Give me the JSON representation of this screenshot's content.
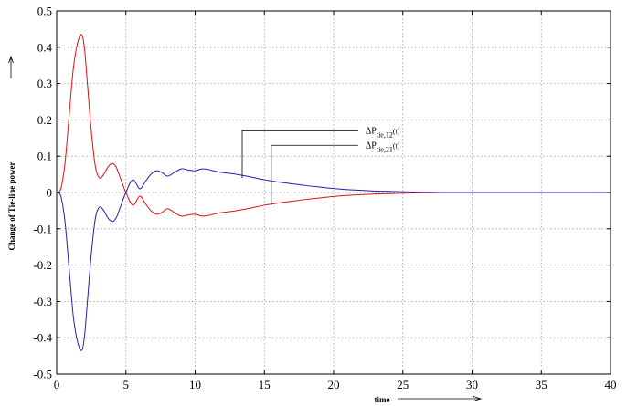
{
  "chart_data": {
    "type": "line",
    "title": "",
    "xlabel": "time",
    "ylabel": "Change of Tie-line power",
    "xlim": [
      0,
      40
    ],
    "ylim": [
      -0.5,
      0.5
    ],
    "grid": true,
    "x_ticks": [
      0,
      5,
      10,
      15,
      20,
      25,
      30,
      35,
      40
    ],
    "x_tick_labels": [
      "0",
      "5",
      "10",
      "15",
      "20",
      "25",
      "30",
      "35",
      "40"
    ],
    "y_ticks": [
      -0.5,
      -0.4,
      -0.3,
      -0.2,
      -0.1,
      0,
      0.1,
      0.2,
      0.3,
      0.4,
      0.5
    ],
    "y_tick_labels": [
      "-0.5",
      "-0.4",
      "-0.3",
      "-0.2",
      "-0.1",
      "0",
      "0.1",
      "0.2",
      "0.3",
      "0.4",
      "0.5"
    ],
    "series": [
      {
        "name": "ΔP_tie,21(t)",
        "label_main": "ΔP",
        "label_sub": "tie,21",
        "label_tail": "(t)",
        "color": "#e01010",
        "x": [
          0,
          0.3,
          0.6,
          0.9,
          1.2,
          1.5,
          1.8,
          2.0,
          2.2,
          2.5,
          2.8,
          3.1,
          3.4,
          3.7,
          4.0,
          4.3,
          4.6,
          5.0,
          5.5,
          6.0,
          6.4,
          6.8,
          7.2,
          7.6,
          8.0,
          8.5,
          9.0,
          9.5,
          10.0,
          10.5,
          11.0,
          11.5,
          12.0,
          13.0,
          14.0,
          15.0,
          16.0,
          17.0,
          18.0,
          19.0,
          20.0,
          21.0,
          22.0,
          23.0,
          24.0,
          25.0,
          26.0,
          27.0,
          28.0,
          30.0,
          35.0,
          40.0
        ],
        "y": [
          0,
          0.01,
          0.08,
          0.21,
          0.34,
          0.41,
          0.435,
          0.4,
          0.31,
          0.17,
          0.07,
          0.04,
          0.05,
          0.07,
          0.08,
          0.07,
          0.04,
          0.0,
          -0.035,
          -0.01,
          -0.03,
          -0.05,
          -0.06,
          -0.055,
          -0.045,
          -0.055,
          -0.065,
          -0.062,
          -0.06,
          -0.065,
          -0.063,
          -0.058,
          -0.055,
          -0.05,
          -0.043,
          -0.035,
          -0.029,
          -0.024,
          -0.019,
          -0.015,
          -0.011,
          -0.008,
          -0.006,
          -0.004,
          -0.003,
          -0.002,
          -0.001,
          -0.0005,
          0,
          0,
          0,
          0
        ]
      },
      {
        "name": "ΔP_tie,12(t)",
        "label_main": "ΔP",
        "label_sub": "tie,12",
        "label_tail": "(t)",
        "color": "#2020b0",
        "x": [
          0,
          0.3,
          0.6,
          0.9,
          1.2,
          1.5,
          1.8,
          2.0,
          2.2,
          2.5,
          2.8,
          3.1,
          3.4,
          3.7,
          4.0,
          4.3,
          4.6,
          5.0,
          5.5,
          6.0,
          6.4,
          6.8,
          7.2,
          7.6,
          8.0,
          8.5,
          9.0,
          9.5,
          10.0,
          10.5,
          11.0,
          11.5,
          12.0,
          13.0,
          14.0,
          15.0,
          16.0,
          17.0,
          18.0,
          19.0,
          20.0,
          21.0,
          22.0,
          23.0,
          24.0,
          25.0,
          26.0,
          27.0,
          28.0,
          30.0,
          35.0,
          40.0
        ],
        "y": [
          0,
          -0.01,
          -0.08,
          -0.21,
          -0.34,
          -0.41,
          -0.435,
          -0.4,
          -0.31,
          -0.17,
          -0.07,
          -0.04,
          -0.05,
          -0.07,
          -0.08,
          -0.07,
          -0.04,
          0.0,
          0.035,
          0.01,
          0.03,
          0.05,
          0.06,
          0.055,
          0.045,
          0.055,
          0.065,
          0.062,
          0.06,
          0.065,
          0.063,
          0.058,
          0.055,
          0.05,
          0.043,
          0.035,
          0.029,
          0.024,
          0.019,
          0.015,
          0.011,
          0.008,
          0.006,
          0.004,
          0.003,
          0.002,
          0.001,
          0.0005,
          0,
          0,
          0,
          0
        ]
      }
    ],
    "annotations": [
      {
        "series_name": "ΔP_tie,12(t)",
        "point": [
          13.4,
          0.04
        ],
        "label_at": [
          22.3,
          0.17
        ]
      },
      {
        "series_name": "ΔP_tie,21(t)",
        "point": [
          15.5,
          -0.035
        ],
        "label_at": [
          22.3,
          0.13
        ]
      }
    ]
  }
}
